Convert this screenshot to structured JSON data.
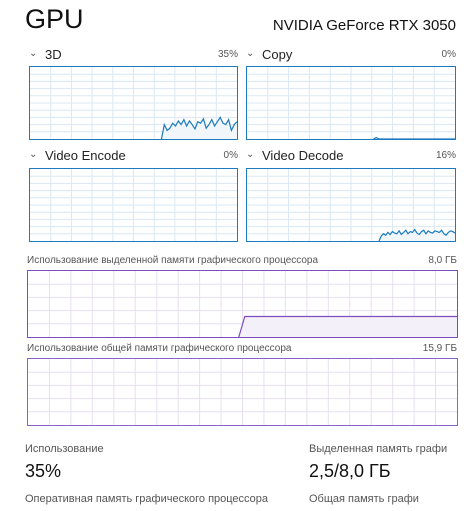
{
  "header": {
    "title": "GPU",
    "device_name": "NVIDIA GeForce RTX 3050"
  },
  "engines": [
    {
      "label": "3D",
      "percent": "35%",
      "usage_series": [
        0,
        0,
        0,
        0,
        0,
        0,
        0,
        0,
        0,
        0,
        0,
        0,
        0,
        0,
        0,
        0,
        0,
        0,
        0,
        0,
        0,
        0,
        0,
        0,
        0,
        0,
        0,
        0,
        0,
        0,
        0,
        0,
        0,
        0,
        0,
        0,
        0,
        0,
        0,
        0,
        0,
        0,
        0,
        0,
        0,
        0,
        0,
        0,
        20,
        12,
        15,
        22,
        18,
        25,
        20,
        27,
        18,
        25,
        20,
        14,
        24,
        22,
        28,
        15,
        20,
        27,
        18,
        24,
        30,
        22,
        20,
        27,
        12,
        20,
        24
      ]
    },
    {
      "label": "Copy",
      "percent": "0%",
      "usage_series": [
        0,
        0,
        0,
        0,
        0,
        0,
        0,
        0,
        0,
        0,
        0,
        0,
        0,
        0,
        0,
        0,
        0,
        0,
        0,
        0,
        0,
        0,
        0,
        0,
        0,
        0,
        0,
        0,
        0,
        0,
        0,
        0,
        0,
        0,
        0,
        0,
        0,
        0,
        0,
        0,
        0,
        0,
        0,
        0,
        0,
        0,
        2,
        0,
        0,
        0,
        0,
        0,
        0,
        0,
        0,
        0,
        0,
        0,
        0,
        0,
        0,
        0,
        0,
        0,
        0,
        0,
        0,
        0,
        0,
        0,
        0,
        0,
        0,
        0,
        0
      ]
    },
    {
      "label": "Video Encode",
      "percent": "0%",
      "usage_series": [
        0,
        0,
        0,
        0,
        0,
        0,
        0,
        0,
        0,
        0,
        0,
        0,
        0,
        0,
        0,
        0,
        0,
        0,
        0,
        0,
        0,
        0,
        0,
        0,
        0,
        0,
        0,
        0,
        0,
        0,
        0,
        0,
        0,
        0,
        0,
        0,
        0,
        0,
        0,
        0,
        0,
        0,
        0,
        0,
        0,
        0,
        0,
        0,
        0,
        0,
        0,
        0,
        0,
        0,
        0,
        0,
        0,
        0,
        0,
        0,
        0,
        0,
        0,
        0,
        0,
        0,
        0,
        0,
        0,
        0,
        0,
        0,
        0,
        0,
        0
      ]
    },
    {
      "label": "Video Decode",
      "percent": "16%",
      "usage_series": [
        0,
        0,
        0,
        0,
        0,
        0,
        0,
        0,
        0,
        0,
        0,
        0,
        0,
        0,
        0,
        0,
        0,
        0,
        0,
        0,
        0,
        0,
        0,
        0,
        0,
        0,
        0,
        0,
        0,
        0,
        0,
        0,
        0,
        0,
        0,
        0,
        0,
        0,
        0,
        0,
        0,
        0,
        0,
        0,
        0,
        0,
        0,
        0,
        0,
        0,
        0,
        0,
        0,
        0,
        0,
        0,
        0,
        0,
        0,
        0,
        7,
        10,
        8,
        12,
        9,
        13,
        11,
        10,
        14,
        9,
        12,
        15,
        10,
        13,
        12,
        16,
        11,
        9,
        13,
        15,
        10,
        14,
        12,
        11,
        14,
        13,
        12,
        15,
        10,
        8,
        12,
        14,
        13,
        11
      ]
    }
  ],
  "memory": {
    "dedicated": {
      "label": "Использование выделенной памяти графического процессора",
      "max": "8,0 ГБ",
      "series_fraction": [
        0,
        0,
        0,
        0,
        0,
        0,
        0,
        0,
        0,
        0,
        0,
        0,
        0,
        0,
        0,
        0,
        0,
        0,
        0,
        0,
        0,
        0,
        0,
        0,
        0,
        0,
        0,
        0,
        0,
        0,
        0,
        0,
        0,
        0,
        0,
        0,
        0,
        0,
        0,
        0,
        0,
        0,
        0,
        0,
        0,
        0,
        0,
        0,
        0.31,
        0.31,
        0.31,
        0.31,
        0.31,
        0.31,
        0.31,
        0.31,
        0.31,
        0.31,
        0.31,
        0.31,
        0.31,
        0.31,
        0.31,
        0.31,
        0.31,
        0.31,
        0.31,
        0.31,
        0.31,
        0.31,
        0.31,
        0.31,
        0.31,
        0.31,
        0.31,
        0.31,
        0.31,
        0.31,
        0.31,
        0.31,
        0.31,
        0.31,
        0.31,
        0.31,
        0.31,
        0.31,
        0.31,
        0.31,
        0.31,
        0.31,
        0.31,
        0.31,
        0.31,
        0.31,
        0.31,
        0.31
      ]
    },
    "shared": {
      "label": "Использование общей памяти графического процессора",
      "max": "15,9 ГБ",
      "series_fraction": [
        0
      ]
    }
  },
  "stats": {
    "utilization": {
      "label": "Использование",
      "value": "35%"
    },
    "dedicated_memory": {
      "label": "Выделенная память графи",
      "value": "2,5/8,0 ГБ"
    },
    "gpu_memory_label": "Оперативная память графического процессора",
    "shared_memory_label": "Общая память графи"
  },
  "colors": {
    "engine_line": "#1a7bbf",
    "engine_fill": "#f1f6fb",
    "engine_grid": "#d9e8f4",
    "memory_line": "#7b4dbf",
    "memory_fill": "#f4f0fa",
    "memory_grid": "#e6dff3"
  }
}
